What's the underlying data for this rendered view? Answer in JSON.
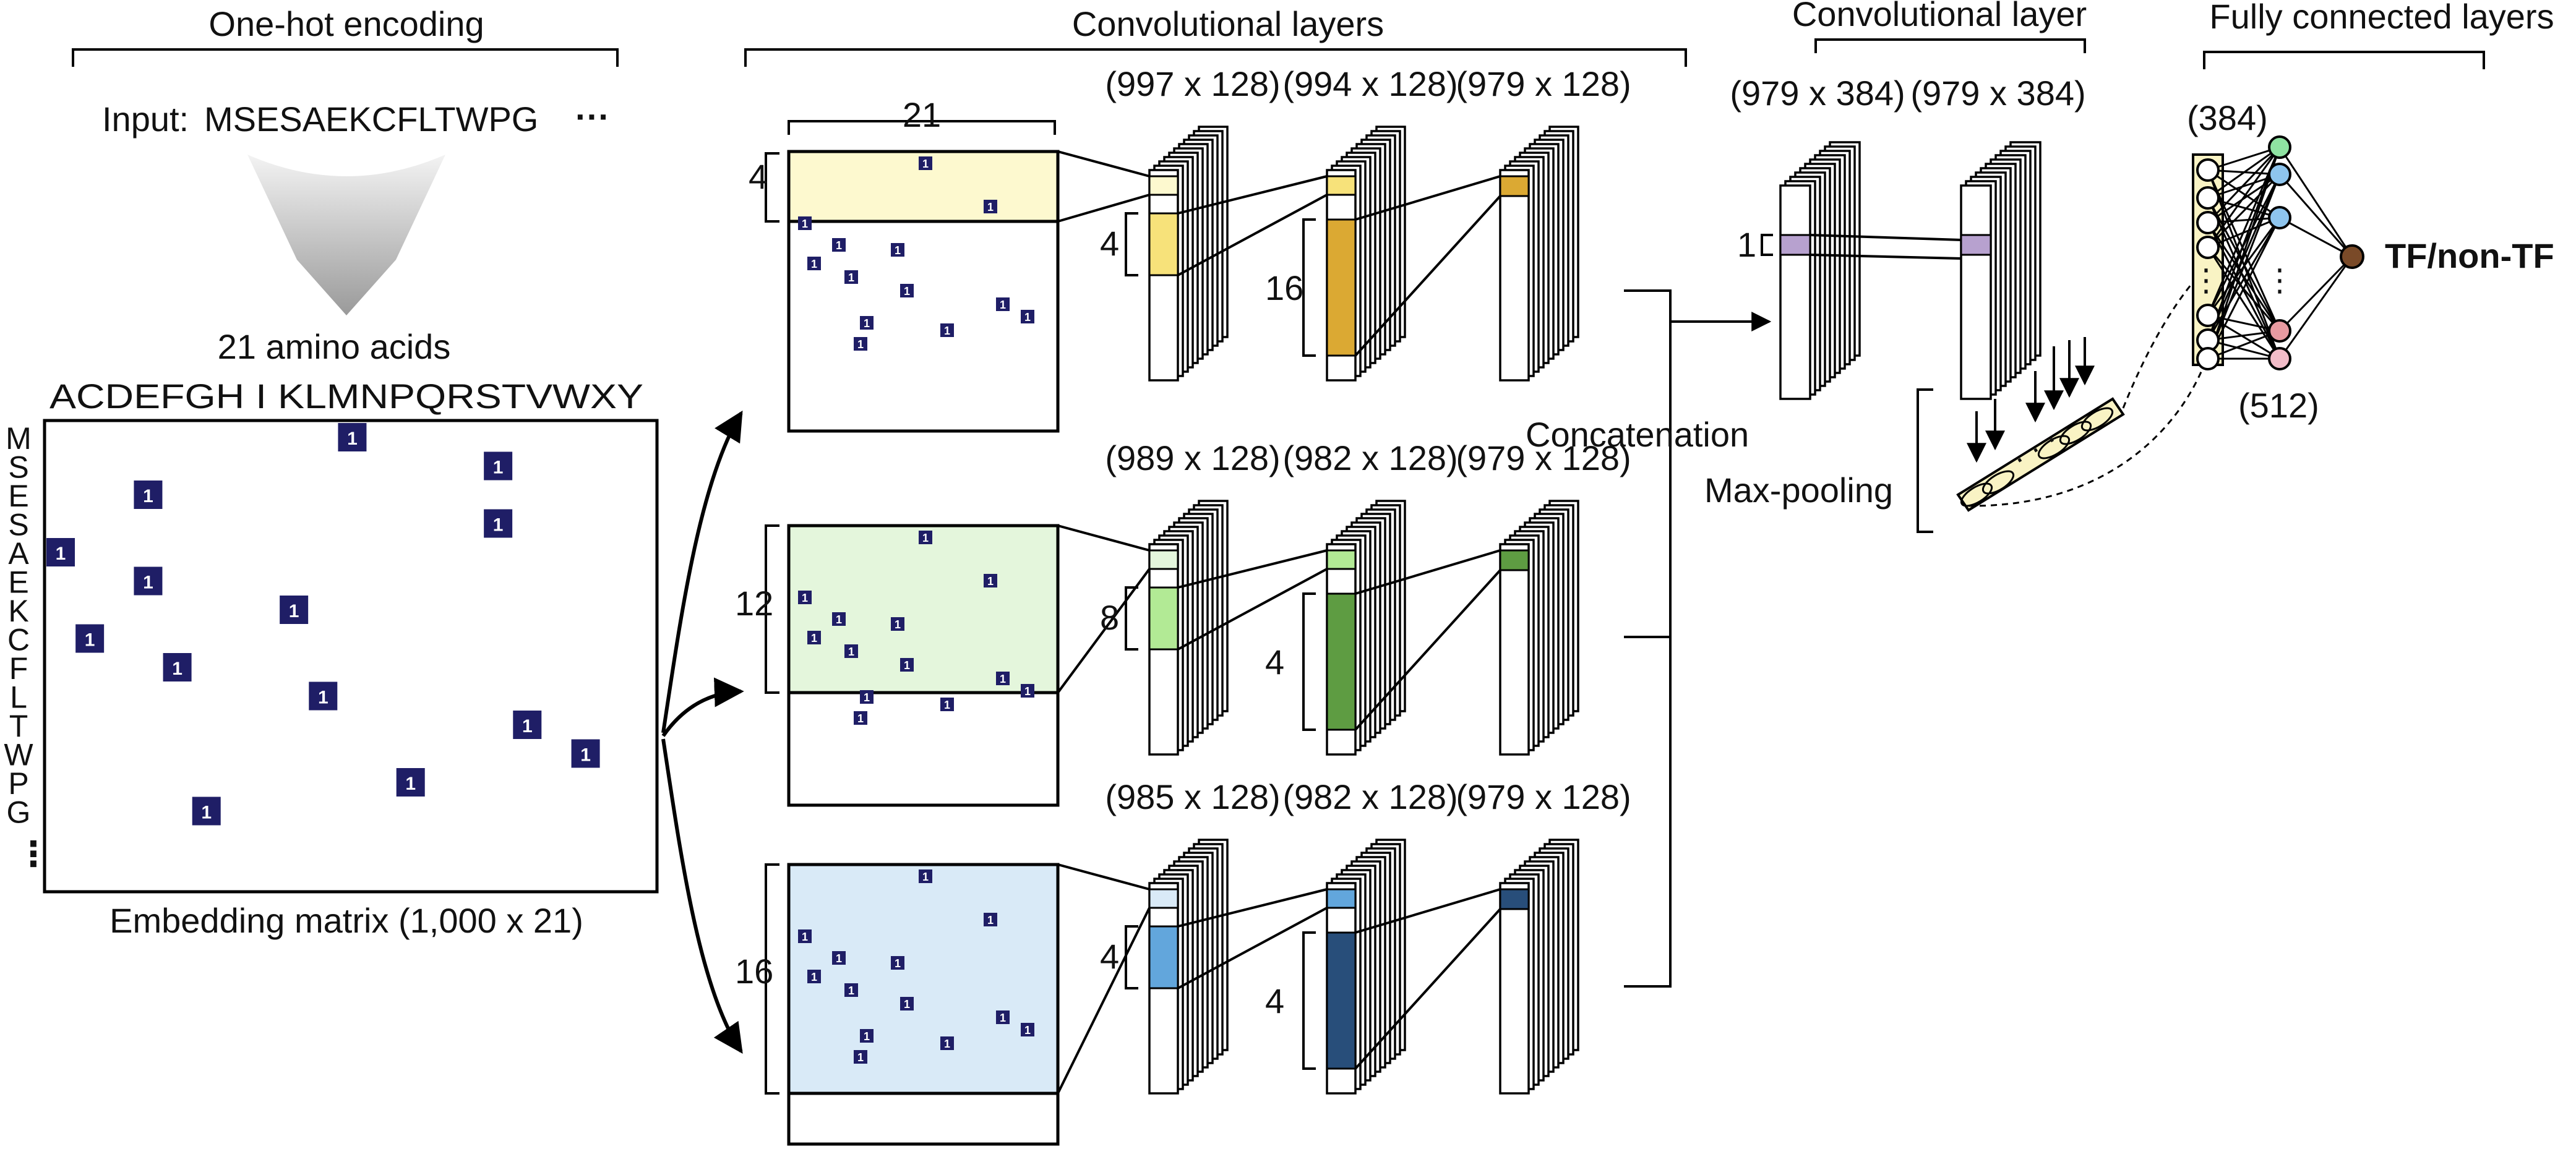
{
  "titles": {
    "one_hot": "One-hot encoding",
    "conv_layers": "Convolutional layers",
    "conv_layer": "Convolutional layer",
    "fc_layers": "Fully connected layers"
  },
  "input": {
    "label": "Input:",
    "sequence": "MSESAEKCFLTWPG",
    "ellipsis": "···"
  },
  "amino_acids": {
    "count_label": "21 amino acids",
    "alphabet": "ACDEFGH I KLMNPQRSTVWXY"
  },
  "embedding": {
    "label": "Embedding matrix (1,000 x 21)",
    "rows": [
      "M",
      "S",
      "E",
      "S",
      "A",
      "E",
      "K",
      "C",
      "F",
      "L",
      "T",
      "W",
      "P",
      "G"
    ],
    "columns": [
      "A",
      "C",
      "D",
      "E",
      "F",
      "G",
      "H",
      "I",
      "K",
      "L",
      "M",
      "N",
      "P",
      "Q",
      "R",
      "S",
      "T",
      "V",
      "W",
      "X",
      "Y"
    ],
    "one_value": "1",
    "more_rows": "⋮"
  },
  "branches": [
    {
      "kernel": "4",
      "width_label": "21",
      "dims": [
        "(997 x 128)",
        "(994 x 128)",
        "(979 x 128)"
      ],
      "kernel2": "4",
      "kernel3": "16",
      "colors": {
        "fill": "#fdf9cf",
        "light": "#f7e27a",
        "dark": "#dba933"
      }
    },
    {
      "kernel": "12",
      "dims": [
        "(989 x 128)",
        "(982 x 128)",
        "(979 x 128)"
      ],
      "kernel2": "8",
      "kernel3": "4",
      "colors": {
        "fill": "#e4f6dc",
        "light": "#b2ea95",
        "dark": "#5e9c42"
      }
    },
    {
      "kernel": "16",
      "dims": [
        "(985 x 128)",
        "(982 x 128)",
        "(979 x 128)"
      ],
      "kernel2": "4",
      "kernel3": "4",
      "colors": {
        "fill": "#d9eaf7",
        "light": "#62a6dc",
        "dark": "#284e7a"
      }
    }
  ],
  "concat": {
    "label": "Concatenation",
    "dims": [
      "(979 x 384)",
      "(979 x 384)"
    ],
    "kernel": "1",
    "pool_label": "Max-pooling",
    "pool_dots": "· · ·",
    "color": "#b7a1cf"
  },
  "fc": {
    "in_label": "(384)",
    "hidden_label": "(512)",
    "output_label": "TF/non-TF",
    "dots": "·  ·  ·",
    "node_colors": [
      "#8fe3a2",
      "#8ec5ee",
      "#8ec5ee",
      "#e89aa1",
      "#f2bcc8"
    ],
    "output_color": "#7a4a28"
  },
  "colors": {
    "cell": "#1f1e66",
    "stroke": "#000000",
    "pool_fill": "#f9f3c4"
  }
}
